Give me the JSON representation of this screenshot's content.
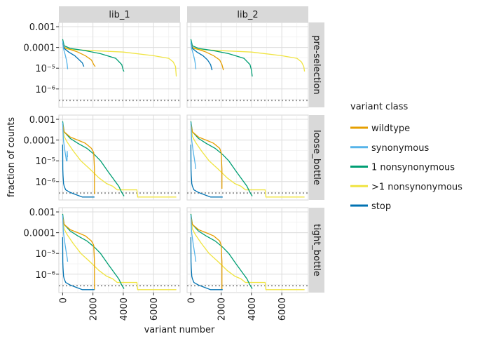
{
  "chart_data": {
    "type": "line",
    "title": "",
    "xlabel": "variant number",
    "ylabel": "fraction of counts",
    "scale_y": "log10",
    "xlim": [
      -250,
      7750
    ],
    "ylim": [
      1.3e-07,
      0.0016
    ],
    "x_ticks": [
      0,
      2000,
      4000,
      6000
    ],
    "x_tick_labels": [
      "0",
      "2000",
      "4000",
      "6000"
    ],
    "y_ticks": [
      1e-06,
      1e-05,
      0.0001,
      0.001
    ],
    "y_tick_labels": [
      "10⁻⁶",
      "10⁻⁵",
      "0.0001",
      "0.001"
    ],
    "grid": true,
    "columns": [
      "lib_1",
      "lib_2"
    ],
    "rows": [
      "pre-selection",
      "loose_bottle",
      "tight_bottle"
    ],
    "threshold_line": {
      "y": 2.8e-07,
      "style": "dotted",
      "color": "#999999"
    },
    "legend": {
      "title": "variant class",
      "position": "right",
      "entries": [
        {
          "label": "wildtype",
          "color": "#E69F00"
        },
        {
          "label": "synonymous",
          "color": "#56B4E9"
        },
        {
          "label": "1 nonsynonymous",
          "color": "#009E73"
        },
        {
          "label": ">1 nonsynonymous",
          "color": "#F0E442"
        },
        {
          "label": "stop",
          "color": "#0072B2"
        }
      ]
    },
    "panels": [
      {
        "row": "pre-selection",
        "column": "lib_1",
        "series": [
          {
            "name": ">1 nonsynonymous",
            "x": [
              0,
              100,
              500,
              2000,
              4000,
              6000,
              7000,
              7300,
              7450,
              7500
            ],
            "y": [
              0.00015,
              9e-05,
              8e-05,
              7e-05,
              6e-05,
              4e-05,
              3e-05,
              2e-05,
              1.2e-05,
              4e-06
            ]
          },
          {
            "name": "1 nonsynonymous",
            "x": [
              0,
              100,
              500,
              1500,
              2500,
              3500,
              3900,
              4000,
              4050
            ],
            "y": [
              0.00025,
              0.00012,
              9e-05,
              7e-05,
              5e-05,
              3e-05,
              1.5e-05,
              8e-06,
              7e-06
            ]
          },
          {
            "name": "wildtype",
            "x": [
              0,
              100,
              500,
              1000,
              1500,
              1900,
              2050,
              2150
            ],
            "y": [
              0.00016,
              0.0001,
              8e-05,
              6e-05,
              4e-05,
              2.5e-05,
              1.5e-05,
              1.2e-05
            ]
          },
          {
            "name": "stop",
            "x": [
              0,
              100,
              400,
              800,
              1100,
              1300,
              1400
            ],
            "y": [
              0.00016,
              9e-05,
              6e-05,
              4e-05,
              2.5e-05,
              1.8e-05,
              1.2e-05
            ]
          },
          {
            "name": "synonymous",
            "x": [
              0,
              50,
              150,
              250,
              300,
              330
            ],
            "y": [
              0.0002,
              9e-05,
              5e-05,
              2.5e-05,
              1.5e-05,
              9e-06
            ]
          }
        ]
      },
      {
        "row": "pre-selection",
        "column": "lib_2",
        "series": [
          {
            "name": ">1 nonsynonymous",
            "x": [
              0,
              100,
              500,
              2000,
              4000,
              6000,
              7000,
              7300,
              7450,
              7500
            ],
            "y": [
              0.00015,
              9e-05,
              8e-05,
              7e-05,
              6e-05,
              4e-05,
              3e-05,
              2e-05,
              1.2e-05,
              7e-06
            ]
          },
          {
            "name": "1 nonsynonymous",
            "x": [
              0,
              100,
              500,
              1500,
              2500,
              3500,
              3900,
              4000,
              4050
            ],
            "y": [
              0.00025,
              0.00012,
              9e-05,
              7e-05,
              5e-05,
              3e-05,
              1.5e-05,
              8e-06,
              4e-06
            ]
          },
          {
            "name": "wildtype",
            "x": [
              0,
              100,
              500,
              1000,
              1500,
              1900,
              2050,
              2150
            ],
            "y": [
              0.00016,
              0.0001,
              8e-05,
              6e-05,
              4e-05,
              2.5e-05,
              1.5e-05,
              8e-06
            ]
          },
          {
            "name": "stop",
            "x": [
              0,
              100,
              400,
              800,
              1100,
              1300,
              1400
            ],
            "y": [
              0.00016,
              9e-05,
              6e-05,
              4e-05,
              2.5e-05,
              1.5e-05,
              8e-06
            ]
          },
          {
            "name": "synonymous",
            "x": [
              0,
              50,
              150,
              250,
              300,
              330
            ],
            "y": [
              0.0002,
              9e-05,
              5e-05,
              2.5e-05,
              1.5e-05,
              9e-06
            ]
          }
        ]
      },
      {
        "row": "loose_bottle",
        "column": "lib_1",
        "series": [
          {
            "name": ">1 nonsynonymous",
            "x": [
              0,
              100,
              300,
              700,
              1200,
              1800,
              2400,
              2900,
              3300,
              3600,
              3800,
              4900,
              4950,
              7500
            ],
            "y": [
              0.0006,
              0.00015,
              8e-05,
              3e-05,
              1e-05,
              4e-06,
              1.5e-06,
              8e-07,
              6e-07,
              4e-07,
              4e-07,
              4e-07,
              1.8e-07,
              1.8e-07
            ]
          },
          {
            "name": "1 nonsynonymous",
            "x": [
              0,
              100,
              500,
              1000,
              1600,
              2100,
              2500,
              3000,
              3400,
              3700,
              3900,
              4050
            ],
            "y": [
              0.0008,
              0.00025,
              0.00012,
              7e-05,
              4e-05,
              2e-05,
              1e-05,
              3e-06,
              1.2e-06,
              6e-07,
              3e-07,
              2e-07
            ]
          },
          {
            "name": "wildtype",
            "x": [
              0,
              100,
              500,
              1000,
              1500,
              1900,
              2050,
              2100,
              2100
            ],
            "y": [
              0.0006,
              0.00025,
              0.00014,
              0.0001,
              7e-05,
              4e-05,
              2.5e-05,
              4e-06,
              2.5e-07
            ]
          },
          {
            "name": "stop",
            "x": [
              0,
              10,
              25,
              60,
              100,
              200,
              500,
              1300,
              1400,
              2100
            ],
            "y": [
              6e-05,
              4e-06,
              2e-06,
              8e-07,
              6e-07,
              4e-07,
              3e-07,
              1.8e-07,
              1.8e-07,
              1.8e-07
            ]
          },
          {
            "name": "synonymous",
            "x": [
              0,
              50,
              150,
              250,
              290,
              300,
              310,
              320
            ],
            "y": [
              0.0007,
              0.0001,
              3e-05,
              1e-05,
              1e-05,
              3e-05,
              2e-05,
              1.5e-05
            ]
          }
        ]
      },
      {
        "row": "loose_bottle",
        "column": "lib_2",
        "series": [
          {
            "name": ">1 nonsynonymous",
            "x": [
              0,
              100,
              300,
              700,
              1200,
              1800,
              2400,
              2900,
              3300,
              3600,
              3800,
              4900,
              4950,
              7500
            ],
            "y": [
              0.0006,
              0.00015,
              8e-05,
              3e-05,
              1e-05,
              4e-06,
              1.5e-06,
              8e-07,
              6e-07,
              4e-07,
              4e-07,
              4e-07,
              1.8e-07,
              1.8e-07
            ]
          },
          {
            "name": "1 nonsynonymous",
            "x": [
              0,
              100,
              500,
              1000,
              1600,
              2100,
              2500,
              3000,
              3400,
              3700,
              3900,
              4050
            ],
            "y": [
              0.0008,
              0.00025,
              0.00012,
              7e-05,
              4e-05,
              2e-05,
              1e-05,
              3e-06,
              1.2e-06,
              6e-07,
              3e-07,
              2e-07
            ]
          },
          {
            "name": "wildtype",
            "x": [
              0,
              100,
              500,
              1000,
              1500,
              1900,
              2000,
              2050,
              2050
            ],
            "y": [
              0.0006,
              0.00025,
              0.00014,
              0.0001,
              7e-05,
              4e-05,
              2.5e-05,
              4e-06,
              4.5e-07
            ]
          },
          {
            "name": "stop",
            "x": [
              0,
              10,
              25,
              60,
              100,
              200,
              500,
              1300,
              1400,
              2100
            ],
            "y": [
              6e-05,
              4e-06,
              2e-06,
              8e-07,
              6e-07,
              4e-07,
              3e-07,
              1.8e-07,
              1.8e-07,
              1.8e-07
            ]
          },
          {
            "name": "synonymous",
            "x": [
              0,
              50,
              150,
              250,
              300,
              320
            ],
            "y": [
              0.0007,
              0.0001,
              3e-05,
              1e-05,
              6e-06,
              4e-06
            ]
          }
        ]
      },
      {
        "row": "tight_bottle",
        "column": "lib_1",
        "series": [
          {
            "name": ">1 nonsynonymous",
            "x": [
              0,
              100,
              300,
              700,
              1200,
              1800,
              2400,
              2900,
              3300,
              3600,
              3800,
              4900,
              4950,
              7500
            ],
            "y": [
              0.0008,
              0.00015,
              8e-05,
              3e-05,
              1e-05,
              4e-06,
              1.5e-06,
              8e-07,
              6e-07,
              4e-07,
              4e-07,
              4e-07,
              1.8e-07,
              1.8e-07
            ]
          },
          {
            "name": "1 nonsynonymous",
            "x": [
              0,
              100,
              500,
              1000,
              1600,
              2100,
              2500,
              3000,
              3400,
              3700,
              3900,
              4050
            ],
            "y": [
              0.0008,
              0.00025,
              0.00012,
              7e-05,
              4e-05,
              2e-05,
              1e-05,
              3e-06,
              1.2e-06,
              6e-07,
              3e-07,
              2e-07
            ]
          },
          {
            "name": "wildtype",
            "x": [
              0,
              100,
              500,
              1000,
              1500,
              1900,
              2050,
              2100,
              2100
            ],
            "y": [
              0.0006,
              0.00025,
              0.00014,
              0.0001,
              7e-05,
              4e-05,
              2.5e-05,
              4e-06,
              1.8e-07
            ]
          },
          {
            "name": "stop",
            "x": [
              0,
              10,
              25,
              60,
              100,
              200,
              500,
              1300,
              1400,
              2100
            ],
            "y": [
              6e-05,
              4e-06,
              2e-06,
              8e-07,
              6e-07,
              4e-07,
              3e-07,
              1.8e-07,
              1.8e-07,
              1.8e-07
            ]
          },
          {
            "name": "synonymous",
            "x": [
              0,
              50,
              150,
              250,
              300,
              330
            ],
            "y": [
              0.0007,
              0.0001,
              3e-05,
              1e-05,
              6e-06,
              4e-06
            ]
          }
        ]
      },
      {
        "row": "tight_bottle",
        "column": "lib_2",
        "series": [
          {
            "name": ">1 nonsynonymous",
            "x": [
              0,
              100,
              300,
              700,
              1200,
              1800,
              2400,
              2900,
              3300,
              3600,
              3800,
              4900,
              4950,
              7500
            ],
            "y": [
              0.0008,
              0.00015,
              8e-05,
              3e-05,
              1e-05,
              4e-06,
              1.5e-06,
              8e-07,
              6e-07,
              4e-07,
              4e-07,
              4e-07,
              1.8e-07,
              1.8e-07
            ]
          },
          {
            "name": "1 nonsynonymous",
            "x": [
              0,
              100,
              500,
              1000,
              1600,
              2100,
              2500,
              3000,
              3400,
              3700,
              3900,
              4050
            ],
            "y": [
              0.0008,
              0.00025,
              0.00012,
              7e-05,
              4e-05,
              2e-05,
              1e-05,
              3e-06,
              1.2e-06,
              6e-07,
              3e-07,
              2e-07
            ]
          },
          {
            "name": "wildtype",
            "x": [
              0,
              100,
              500,
              1000,
              1500,
              1900,
              2000,
              2050,
              2050
            ],
            "y": [
              0.0006,
              0.00025,
              0.00014,
              0.0001,
              7e-05,
              4e-05,
              2.5e-05,
              4e-06,
              1.8e-07
            ]
          },
          {
            "name": "stop",
            "x": [
              0,
              10,
              25,
              60,
              100,
              200,
              500,
              1300,
              1400,
              2100
            ],
            "y": [
              6e-05,
              4e-06,
              2e-06,
              8e-07,
              6e-07,
              4e-07,
              3e-07,
              1.8e-07,
              1.8e-07,
              1.8e-07
            ]
          },
          {
            "name": "synonymous",
            "x": [
              0,
              50,
              150,
              250,
              300,
              330
            ],
            "y": [
              0.0007,
              0.0001,
              3e-05,
              1e-05,
              6e-06,
              4e-06
            ]
          }
        ]
      }
    ]
  }
}
